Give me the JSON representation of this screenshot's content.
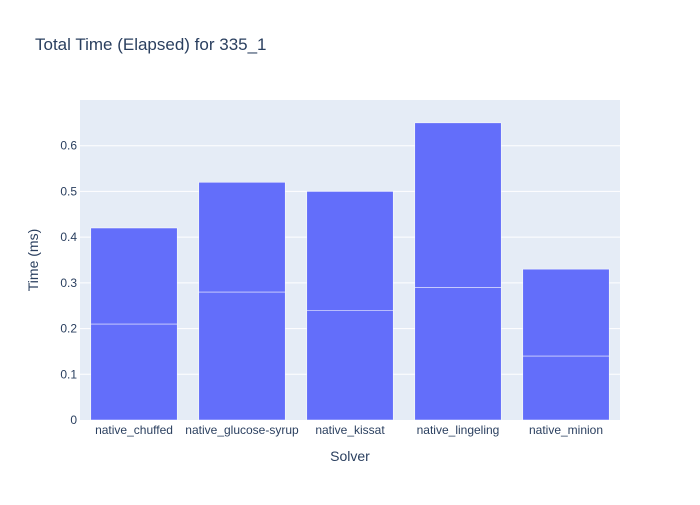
{
  "chart_data": {
    "type": "bar",
    "title": "Total Time (Elapsed) for 335_1",
    "xlabel": "Solver",
    "ylabel": "Time (ms)",
    "categories": [
      "native_chuffed",
      "native_glucose-syrup",
      "native_kissat",
      "native_lingeling",
      "native_minion"
    ],
    "segments": [
      [
        0.21,
        0.21
      ],
      [
        0.28,
        0.24
      ],
      [
        0.24,
        0.26
      ],
      [
        0.29,
        0.36
      ],
      [
        0.14,
        0.19
      ]
    ],
    "totals": [
      0.42,
      0.52,
      0.5,
      0.65,
      0.33
    ],
    "ylim": [
      0,
      0.7
    ],
    "yticks": [
      0,
      0.1,
      0.2,
      0.3,
      0.4,
      0.5,
      0.6
    ],
    "ytick_labels": [
      "0",
      "0.1",
      "0.2",
      "0.3",
      "0.4",
      "0.5",
      "0.6"
    ],
    "bar_color": "#636efa",
    "plot_bg": "#e5ecf6",
    "grid": true,
    "legend": "none"
  }
}
